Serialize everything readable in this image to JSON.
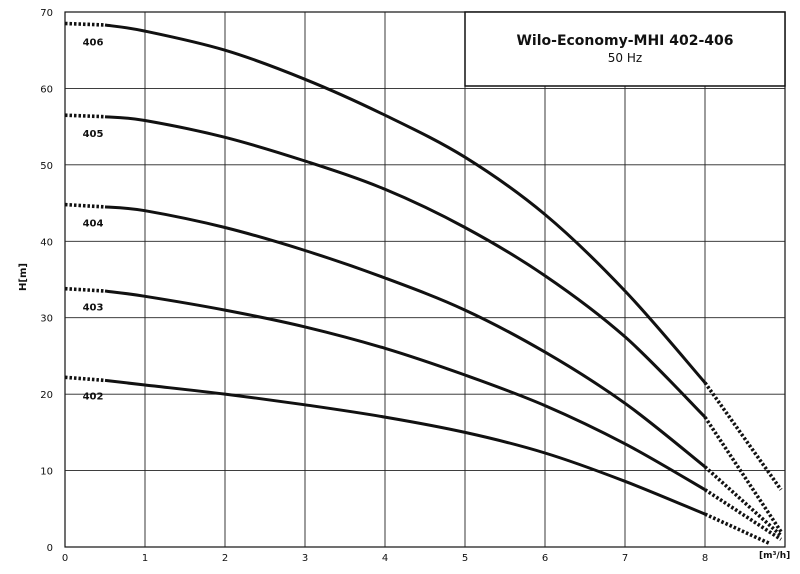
{
  "chart_data": {
    "type": "line",
    "title": "Wilo-Economy-MHI 402-406",
    "subtitle": "50 Hz",
    "xlabel": "[m³/h]",
    "ylabel": "H[m]",
    "xlim": [
      0,
      9
    ],
    "ylim": [
      0,
      70
    ],
    "xticks": [
      "0",
      "1",
      "2",
      "3",
      "4",
      "5",
      "6",
      "7",
      "8"
    ],
    "yticks": [
      "0",
      "10",
      "20",
      "30",
      "40",
      "50",
      "60",
      "70"
    ],
    "grid": true,
    "dotted_segments": "curve ends below 0.5 m³/h and above 8 m³/h",
    "series": [
      {
        "name": "406",
        "x": [
          0,
          0.5,
          1,
          2,
          3,
          4,
          5,
          6,
          7,
          8,
          8.95
        ],
        "y": [
          68.5,
          68.3,
          67.5,
          65.0,
          61.2,
          56.5,
          51.0,
          43.5,
          33.5,
          21.5,
          7.5
        ]
      },
      {
        "name": "405",
        "x": [
          0,
          0.5,
          1,
          2,
          3,
          4,
          5,
          6,
          7,
          8,
          8.95
        ],
        "y": [
          56.5,
          56.3,
          55.8,
          53.6,
          50.5,
          46.8,
          41.8,
          35.5,
          27.5,
          17.0,
          2.0
        ]
      },
      {
        "name": "404",
        "x": [
          0,
          0.5,
          1,
          2,
          3,
          4,
          5,
          6,
          7,
          8,
          8.95
        ],
        "y": [
          44.8,
          44.5,
          44.0,
          41.8,
          38.8,
          35.2,
          31.0,
          25.5,
          18.8,
          10.5,
          1.5
        ]
      },
      {
        "name": "403",
        "x": [
          0,
          0.5,
          1,
          2,
          3,
          4,
          5,
          6,
          7,
          8,
          8.95
        ],
        "y": [
          33.8,
          33.5,
          32.8,
          31.0,
          28.8,
          26.0,
          22.5,
          18.5,
          13.5,
          7.5,
          1.0
        ]
      },
      {
        "name": "402",
        "x": [
          0,
          0.5,
          1,
          2,
          3,
          4,
          5,
          6,
          7,
          8,
          8.8
        ],
        "y": [
          22.2,
          21.8,
          21.2,
          20.0,
          18.6,
          17.0,
          15.0,
          12.3,
          8.6,
          4.3,
          0.5
        ]
      }
    ]
  }
}
